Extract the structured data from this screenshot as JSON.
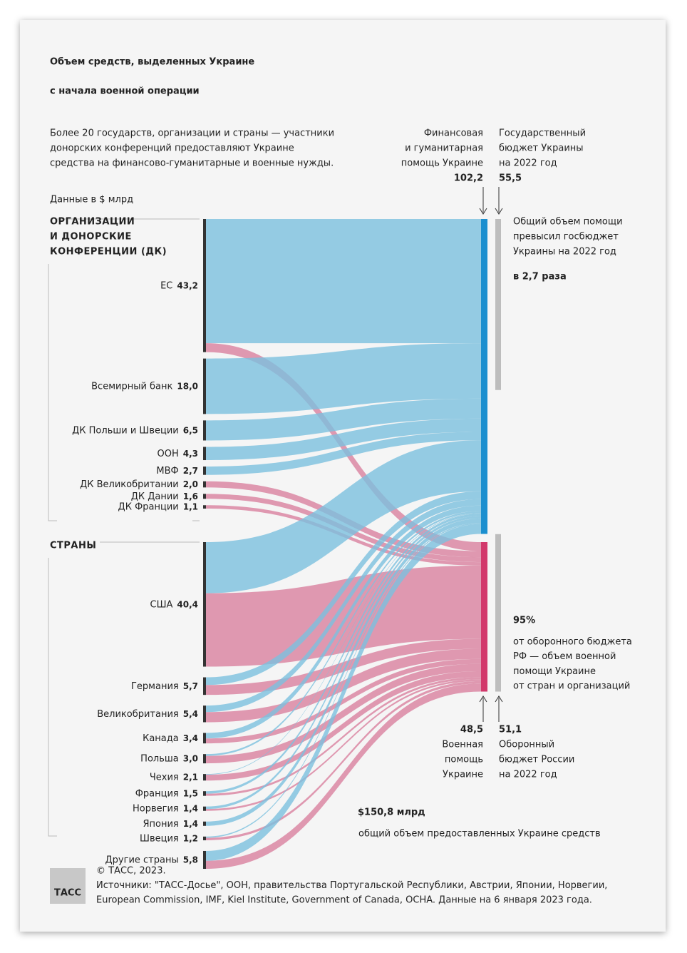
{
  "title": [
    "Объем средств, выделенных Украине",
    "с начала военной операции"
  ],
  "subtitle": [
    "Более 20 государств, организации и страны — участники",
    "донорских конференций предоставляют Украине",
    "средства на финансово-гуманитарные и военные нужды."
  ],
  "units": "Данные в $ млрд",
  "chart_data": {
    "type": "sankey",
    "groups": [
      {
        "label": [
          "ОРГАНИЗАЦИИ",
          "И ДОНОРСКИЕ",
          "КОНФЕРЕНЦИИ (ДК)"
        ],
        "sources": [
          {
            "name": "ЕС",
            "value": 43.2,
            "value_label": "43,2",
            "flows": [
              40.3,
              2.9
            ]
          },
          {
            "name": "Всемирный банк",
            "value": 18.0,
            "value_label": "18,0",
            "flows": [
              18.0,
              0
            ]
          },
          {
            "name": "ДК Польши и Швеции",
            "value": 6.5,
            "value_label": "6,5",
            "flows": [
              6.5,
              0
            ]
          },
          {
            "name": "ООН",
            "value": 4.3,
            "value_label": "4,3",
            "flows": [
              4.3,
              0
            ]
          },
          {
            "name": "МВФ",
            "value": 2.7,
            "value_label": "2,7",
            "flows": [
              2.7,
              0
            ]
          },
          {
            "name": "ДК Великобритании",
            "value": 2.0,
            "value_label": "2,0",
            "flows": [
              0,
              2.0
            ]
          },
          {
            "name": "ДК Дании",
            "value": 1.6,
            "value_label": "1,6",
            "flows": [
              0,
              1.6
            ]
          },
          {
            "name": "ДК Франции",
            "value": 1.1,
            "value_label": "1,1",
            "flows": [
              0,
              1.1
            ]
          }
        ]
      },
      {
        "label": [
          "СТРАНЫ"
        ],
        "sources": [
          {
            "name": "США",
            "value": 40.4,
            "value_label": "40,4",
            "flows": [
              16.6,
              23.8
            ]
          },
          {
            "name": "Германия",
            "value": 5.7,
            "value_label": "5,7",
            "flows": [
              2.5,
              3.2
            ]
          },
          {
            "name": "Великобритания",
            "value": 5.4,
            "value_label": "5,4",
            "flows": [
              2.1,
              3.3
            ]
          },
          {
            "name": "Канада",
            "value": 3.4,
            "value_label": "3,4",
            "flows": [
              1.8,
              1.6
            ]
          },
          {
            "name": "Польша",
            "value": 3.0,
            "value_label": "3,0",
            "flows": [
              0.6,
              2.4
            ]
          },
          {
            "name": "Чехия",
            "value": 2.1,
            "value_label": "2,1",
            "flows": [
              0.2,
              1.9
            ]
          },
          {
            "name": "Франция",
            "value": 1.5,
            "value_label": "1,5",
            "flows": [
              0.8,
              0.7
            ]
          },
          {
            "name": "Норвегия",
            "value": 1.4,
            "value_label": "1,4",
            "flows": [
              0.8,
              0.6
            ]
          },
          {
            "name": "Япония",
            "value": 1.4,
            "value_label": "1,4",
            "flows": [
              1.4,
              0
            ]
          },
          {
            "name": "Швеция",
            "value": 1.2,
            "value_label": "1,2",
            "flows": [
              0.4,
              0.8
            ]
          },
          {
            "name": "Другие страны",
            "value": 5.8,
            "value_label": "5,8",
            "flows": [
              3.2,
              2.6
            ]
          }
        ]
      }
    ],
    "targets": [
      {
        "name": [
          "Финансовая",
          "и гуманитарная",
          "помощь Украине"
        ],
        "value": 102.2,
        "value_label": "102,2",
        "color": "#1b8fcf",
        "flow_color": "#7cc1de"
      },
      {
        "name": [
          "Военная",
          "помощь",
          "Украине"
        ],
        "value": 48.5,
        "value_label": "48,5",
        "color": "#d2386b",
        "flow_color": "#d9819f"
      }
    ],
    "budgets": [
      {
        "name": [
          "Государственный",
          "бюджет Украины",
          "на 2022 год"
        ],
        "value": 55.5,
        "value_label": "55,5",
        "color": "#bdbdbd"
      },
      {
        "name": [
          "Оборонный",
          "бюджет России",
          "на 2022 год"
        ],
        "value": 51.1,
        "value_label": "51,1",
        "color": "#bdbdbd"
      }
    ]
  },
  "annotations": {
    "ratio": {
      "text": [
        "Общий объем помощи",
        "превысил госбюджет",
        "Украины на 2022 год"
      ],
      "highlight": "в 2,7 раза"
    },
    "share": {
      "highlight": "95%",
      "text": [
        "от оборонного бюджета",
        "РФ — объем военной",
        "помощи Украине",
        "от стран и организаций"
      ]
    },
    "total": {
      "highlight": "$150,8 млрд",
      "text": "общий объем предоставленных Украине средств"
    }
  },
  "footer": {
    "logo": "ТАСС",
    "lines": [
      "© ТАСС, 2023.",
      "Источники: \"ТАСС-Досье\", ООН, правительства Португальской Республики, Австрии, Японии, Норвегии,",
      "European Commission, IMF, Kiel Institute, Government of Canada, OCHA. Данные на 6 января 2023 года."
    ]
  }
}
